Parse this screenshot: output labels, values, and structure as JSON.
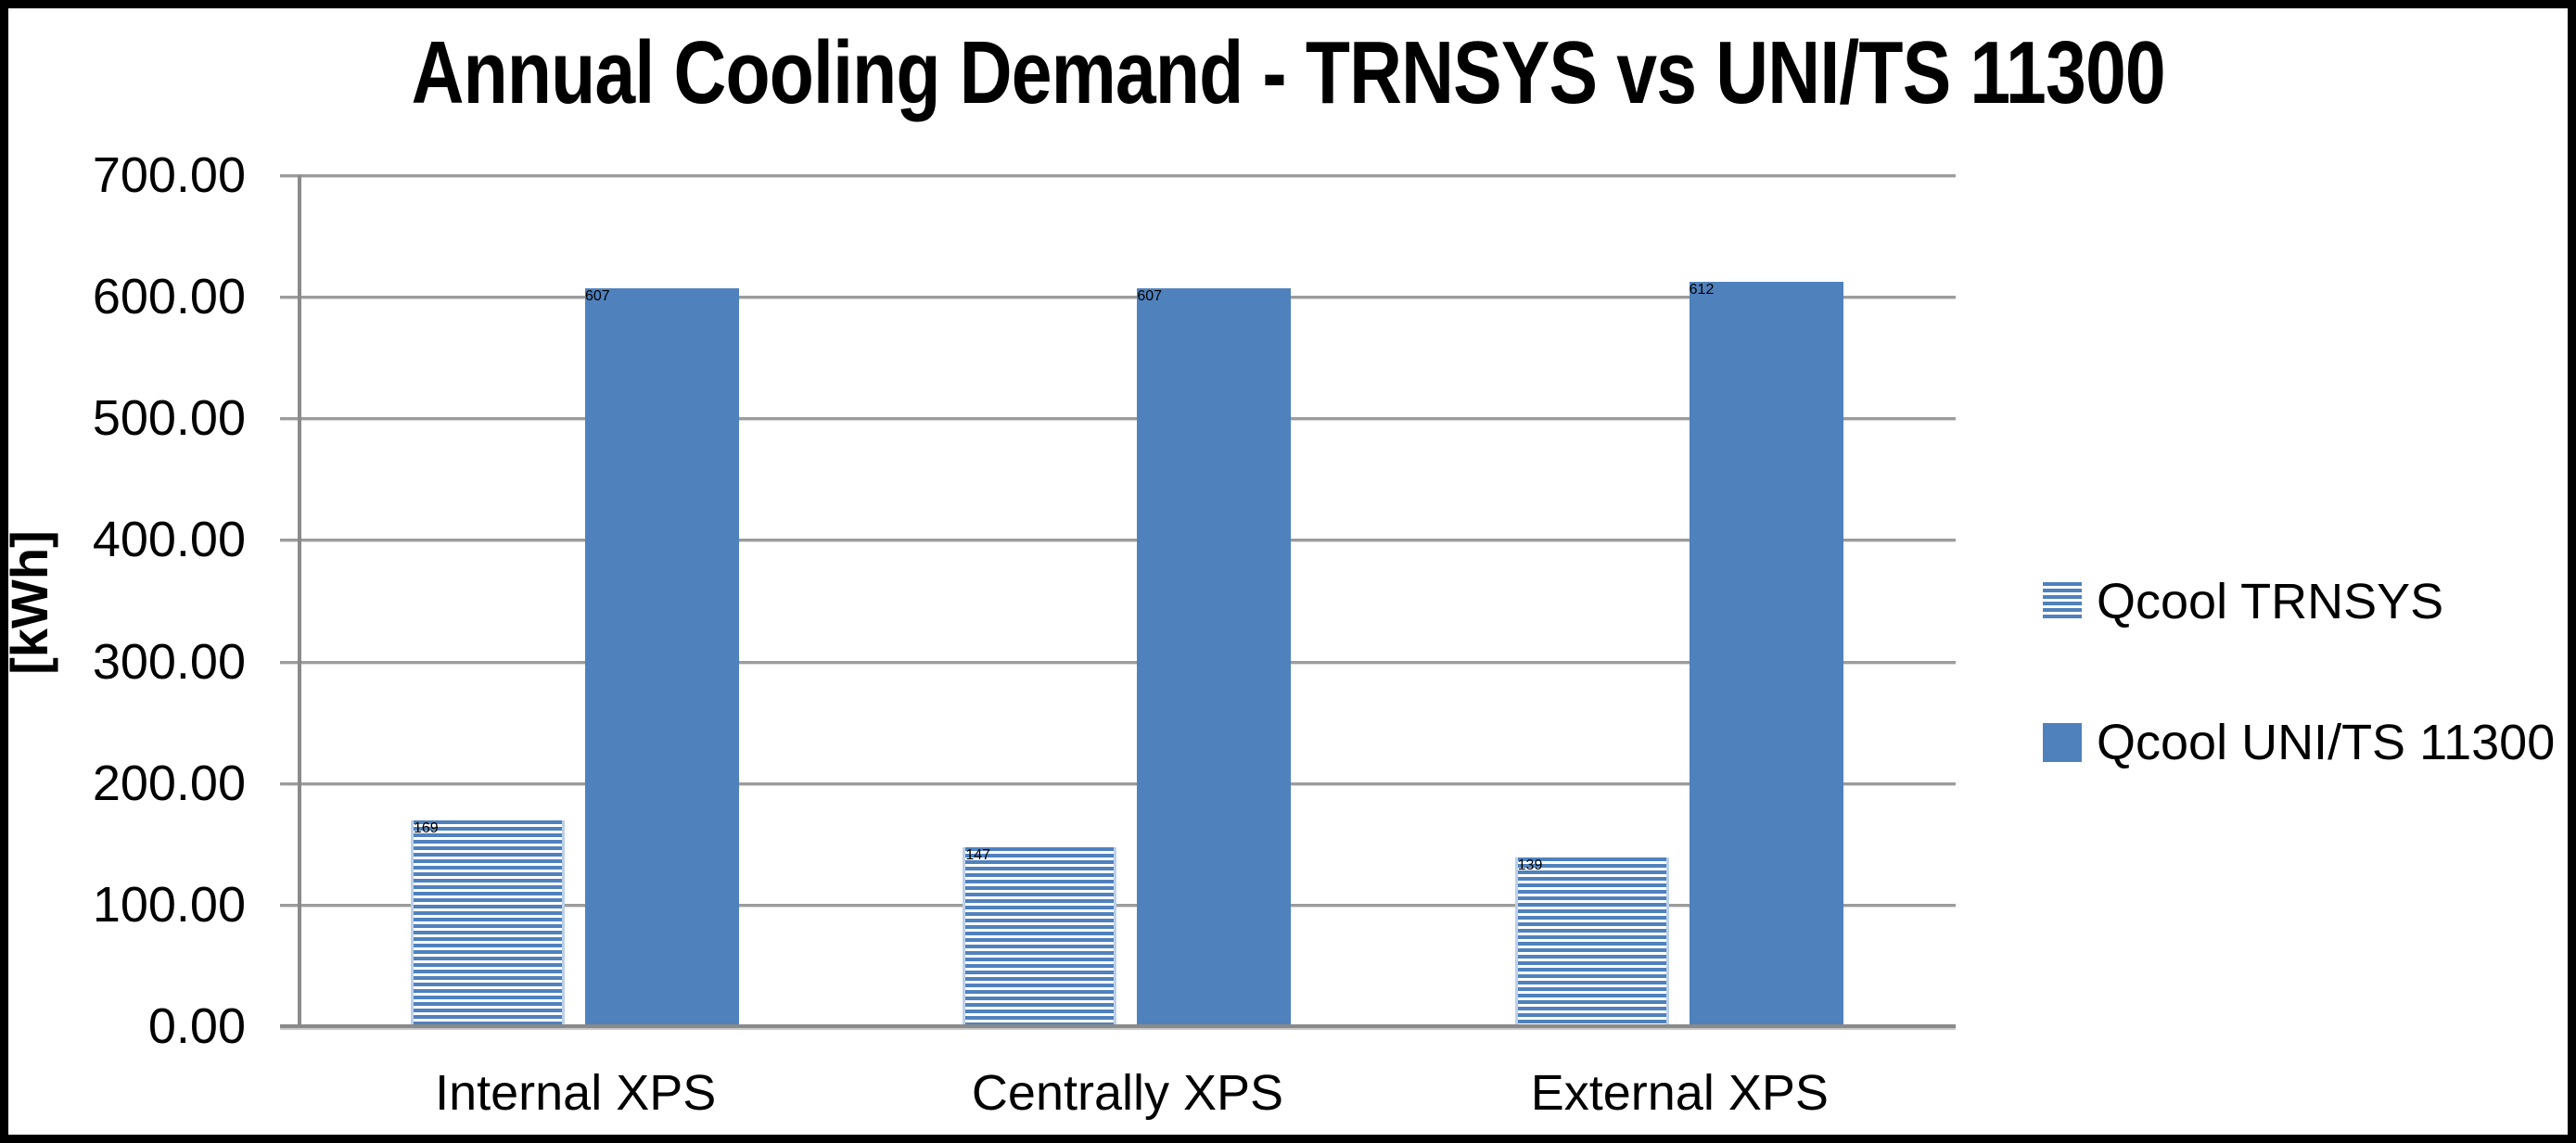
{
  "chart_data": {
    "type": "bar",
    "title": "Annual Cooling Demand - TRNSYS vs UNI/TS 11300",
    "categories": [
      "Internal XPS",
      "Centrally XPS",
      "External XPS"
    ],
    "series": [
      {
        "name": "Qcool TRNSYS",
        "pattern": "horizontal-stripes",
        "color": "#4F81BD",
        "values": [
          169,
          147,
          139
        ]
      },
      {
        "name": "Qcool UNI/TS 11300",
        "pattern": "solid",
        "color": "#4F81BD",
        "values": [
          607,
          607,
          612
        ]
      }
    ],
    "xlabel": "",
    "ylabel": "[kWh]",
    "ylim": [
      0,
      700
    ],
    "ytick_step": 100,
    "ytick_decimals": 2,
    "grid": true,
    "gridline_color": "#9C9C9C",
    "axis_color": "#8A8A8A",
    "text_color": "#000000",
    "legend_position": "right",
    "plot_background": "#FFFFFF",
    "border_color": "#000000"
  }
}
